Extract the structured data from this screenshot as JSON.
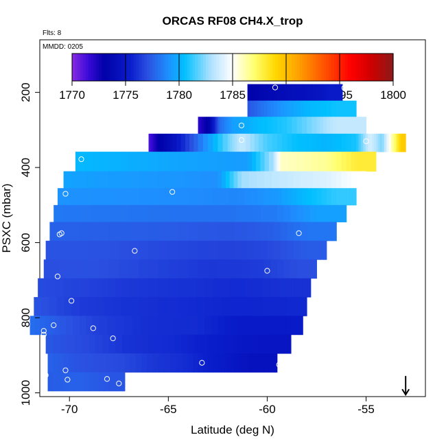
{
  "chart_data": {
    "type": "heatmap",
    "title": "ORCAS RF08 CH4.X_trop",
    "flights_label": "Flts: 8",
    "date_label": "MMDD: 0205",
    "xlabel": "Latitude (deg N)",
    "ylabel": "PSXC (mbar)",
    "xlim": [
      -71.5,
      -52
    ],
    "ylim": [
      1010,
      60
    ],
    "x_ticks": [
      -70,
      -65,
      -60,
      -55
    ],
    "x_tick_labels": [
      "-70",
      "-65",
      "-60",
      "-55"
    ],
    "y_ticks": [
      200,
      400,
      600,
      800,
      1000
    ],
    "y_tick_labels": [
      "200",
      "400",
      "600",
      "800",
      "1000"
    ],
    "colorbar": {
      "min": 1770,
      "max": 1800,
      "ticks": [
        1770,
        1775,
        1780,
        1785,
        1790,
        1795,
        1800
      ],
      "tick_labels": [
        "1770",
        "1775",
        "1780",
        "1785",
        "1790",
        "1795",
        "1800"
      ],
      "stops": [
        {
          "v": 1770,
          "c": "#8a2be2"
        },
        {
          "v": 1771.5,
          "c": "#3a0ad8"
        },
        {
          "v": 1773,
          "c": "#0000a8"
        },
        {
          "v": 1775.5,
          "c": "#0a1ecc"
        },
        {
          "v": 1777,
          "c": "#2a4ee0"
        },
        {
          "v": 1779,
          "c": "#1e90ff"
        },
        {
          "v": 1780.5,
          "c": "#00bfff"
        },
        {
          "v": 1783,
          "c": "#b0e2ff"
        },
        {
          "v": 1785,
          "c": "#ffffff"
        },
        {
          "v": 1787,
          "c": "#ffff70"
        },
        {
          "v": 1789,
          "c": "#ffd700"
        },
        {
          "v": 1791,
          "c": "#ffa500"
        },
        {
          "v": 1794,
          "c": "#ff4500"
        },
        {
          "v": 1796,
          "c": "#ff0000"
        },
        {
          "v": 1798,
          "c": "#cd0000"
        },
        {
          "v": 1800,
          "c": "#8b1a1a"
        }
      ]
    },
    "layers": [
      {
        "p": [
          178,
          222
        ],
        "x0": -61,
        "x1": -56.2,
        "segments": [
          [
            -61,
            1773.2
          ],
          [
            -59.8,
            1773.8
          ],
          [
            -58.8,
            1774.2
          ],
          [
            -57.5,
            1774.6
          ],
          [
            -56.8,
            1775.2
          ]
        ]
      },
      {
        "p": [
          222,
          265
        ],
        "x0": -61,
        "x1": -55.5,
        "segments": [
          [
            -61,
            1777.2
          ],
          [
            -60,
            1778.4
          ],
          [
            -59,
            1779.4
          ],
          [
            -58,
            1780.2
          ],
          [
            -56.5,
            1780.7
          ]
        ]
      },
      {
        "p": [
          265,
          310
        ],
        "x0": -63.5,
        "x1": -55,
        "segments": [
          [
            -63.5,
            1771.8
          ],
          [
            -62.9,
            1773.5
          ],
          [
            -62.4,
            1778
          ],
          [
            -61.7,
            1779.5
          ],
          [
            -60.5,
            1780.3
          ],
          [
            -59,
            1781
          ],
          [
            -57.5,
            1782.5
          ],
          [
            -56.5,
            1783.5
          ]
        ]
      },
      {
        "p": [
          310,
          358
        ],
        "x0": -66,
        "x1": -53,
        "segments": [
          [
            -66,
            1771
          ],
          [
            -65.5,
            1773
          ],
          [
            -64.8,
            1774.3
          ],
          [
            -63.5,
            1778
          ],
          [
            -62,
            1782
          ],
          [
            -61.3,
            1783.5
          ],
          [
            -60,
            1781.5
          ],
          [
            -58.5,
            1780.5
          ],
          [
            -57,
            1780.2
          ],
          [
            -55.5,
            1780.8
          ],
          [
            -54.8,
            1784
          ],
          [
            -54.2,
            1782.2
          ],
          [
            -53.5,
            1787.5
          ],
          [
            -53.2,
            1789.5
          ]
        ]
      },
      {
        "p": [
          358,
          410
        ],
        "x0": -69.7,
        "x1": -54.5,
        "segments": [
          [
            -69.7,
            1780.3
          ],
          [
            -67,
            1780
          ],
          [
            -64,
            1779.6
          ],
          [
            -61,
            1779.4
          ],
          [
            -59.7,
            1783
          ],
          [
            -59.3,
            1785.8
          ],
          [
            -57,
            1786.5
          ],
          [
            -55.5,
            1788
          ]
        ]
      },
      {
        "p": [
          410,
          455
        ],
        "x0": -70.3,
        "x1": -55,
        "segments": [
          [
            -70.3,
            1779.6
          ],
          [
            -68,
            1779.4
          ],
          [
            -65,
            1779.2
          ],
          [
            -62.5,
            1779
          ],
          [
            -61.3,
            1782.8
          ],
          [
            -59,
            1783.6
          ],
          [
            -57,
            1784.1
          ],
          [
            -55.5,
            1785
          ]
        ]
      },
      {
        "p": [
          455,
          500
        ],
        "x0": -70.6,
        "x1": -55.5,
        "segments": [
          [
            -70.6,
            1779.1
          ],
          [
            -67,
            1779
          ],
          [
            -64,
            1778.9
          ],
          [
            -61.5,
            1778.7
          ],
          [
            -59.5,
            1779.3
          ],
          [
            -58,
            1780.4
          ],
          [
            -56.5,
            1781.2
          ]
        ]
      },
      {
        "p": [
          500,
          545
        ],
        "x0": -70.8,
        "x1": -56,
        "segments": [
          [
            -70.8,
            1778.3
          ],
          [
            -68,
            1778.2
          ],
          [
            -65,
            1778.1
          ],
          [
            -62,
            1778.1
          ],
          [
            -59.5,
            1778.4
          ],
          [
            -57.5,
            1779.5
          ]
        ]
      },
      {
        "p": [
          545,
          595
        ],
        "x0": -71,
        "x1": -56.5,
        "segments": [
          [
            -71,
            1777.6
          ],
          [
            -68,
            1777.5
          ],
          [
            -65,
            1777.4
          ],
          [
            -62,
            1777.2
          ],
          [
            -60,
            1777.4
          ],
          [
            -58,
            1778.2
          ]
        ]
      },
      {
        "p": [
          595,
          645
        ],
        "x0": -71.2,
        "x1": -57,
        "segments": [
          [
            -71.2,
            1777.2
          ],
          [
            -68,
            1777.1
          ],
          [
            -65,
            1776.8
          ],
          [
            -62,
            1776.6
          ],
          [
            -60,
            1776.8
          ],
          [
            -58,
            1777.4
          ]
        ]
      },
      {
        "p": [
          645,
          695
        ],
        "x0": -71.3,
        "x1": -57.5,
        "segments": [
          [
            -71.3,
            1777
          ],
          [
            -69,
            1777.1
          ],
          [
            -66,
            1776.7
          ],
          [
            -63,
            1776.3
          ],
          [
            -60.5,
            1776.4
          ],
          [
            -58.5,
            1777
          ]
        ]
      },
      {
        "p": [
          695,
          745
        ],
        "x0": -71.6,
        "x1": -57.8,
        "segments": [
          [
            -71.6,
            1776.9
          ],
          [
            -69,
            1776.6
          ],
          [
            -67,
            1776.3
          ],
          [
            -64,
            1776.1
          ],
          [
            -61.5,
            1775.9
          ],
          [
            -59,
            1776.1
          ]
        ]
      },
      {
        "p": [
          745,
          795
        ],
        "x0": -71.8,
        "x1": -58,
        "segments": [
          [
            -71.8,
            1777.2
          ],
          [
            -69.5,
            1776.4
          ],
          [
            -67,
            1776.1
          ],
          [
            -64,
            1775.9
          ],
          [
            -61.5,
            1775.7
          ],
          [
            -59,
            1775.8
          ]
        ]
      },
      {
        "p": [
          795,
          845
        ],
        "x0": -72,
        "x1": -58.2,
        "segments": [
          [
            -72,
            1778
          ],
          [
            -70.5,
            1777.3
          ],
          [
            -68.5,
            1776.5
          ],
          [
            -66,
            1776
          ],
          [
            -63.5,
            1775.9
          ],
          [
            -61.5,
            1775.3
          ],
          [
            -59.5,
            1775.2
          ]
        ]
      },
      {
        "p": [
          845,
          895
        ],
        "x0": -71.2,
        "x1": -58.8,
        "segments": [
          [
            -71.2,
            1777.3
          ],
          [
            -69,
            1776.8
          ],
          [
            -67,
            1776.1
          ],
          [
            -65,
            1775.9
          ],
          [
            -63,
            1775.5
          ],
          [
            -61.5,
            1775
          ],
          [
            -60,
            1774.8
          ]
        ]
      },
      {
        "p": [
          895,
          945
        ],
        "x0": -71.1,
        "x1": -59.5,
        "segments": [
          [
            -71.1,
            1777.6
          ],
          [
            -69.5,
            1777.1
          ],
          [
            -67.5,
            1776.9
          ],
          [
            -65.8,
            1776.3
          ],
          [
            -64,
            1775.9
          ],
          [
            -62.5,
            1775.3
          ],
          [
            -61.5,
            1774.8
          ],
          [
            -60.8,
            1774.5
          ]
        ]
      },
      {
        "p": [
          945,
          995
        ],
        "x0": -71.1,
        "x1": -67.2,
        "segments": [
          [
            -71.1,
            1777.4
          ],
          [
            -69.5,
            1777.6
          ],
          [
            -68,
            1777.2
          ]
        ]
      }
    ],
    "flight_points": [
      {
        "x": -59.6,
        "p": 187
      },
      {
        "x": -56.1,
        "p": 188
      },
      {
        "x": -61.3,
        "p": 288
      },
      {
        "x": -61.3,
        "p": 327
      },
      {
        "x": -55,
        "p": 330
      },
      {
        "x": -69.4,
        "p": 378
      },
      {
        "x": -64.8,
        "p": 465
      },
      {
        "x": -70.2,
        "p": 470
      },
      {
        "x": -70.4,
        "p": 575
      },
      {
        "x": -70.5,
        "p": 578
      },
      {
        "x": -58.4,
        "p": 575
      },
      {
        "x": -66.7,
        "p": 622
      },
      {
        "x": -60,
        "p": 675
      },
      {
        "x": -70.6,
        "p": 690
      },
      {
        "x": -69.9,
        "p": 755
      },
      {
        "x": -57.8,
        "p": 775
      },
      {
        "x": -70.8,
        "p": 820
      },
      {
        "x": -71.3,
        "p": 835
      },
      {
        "x": -68.8,
        "p": 828
      },
      {
        "x": -71.3,
        "p": 845
      },
      {
        "x": -67.8,
        "p": 855
      },
      {
        "x": -63.3,
        "p": 920
      },
      {
        "x": -59.4,
        "p": 925
      },
      {
        "x": -70.2,
        "p": 940
      },
      {
        "x": -71.2,
        "p": 953
      },
      {
        "x": -70.1,
        "p": 965
      },
      {
        "x": -68.1,
        "p": 963
      },
      {
        "x": -67.5,
        "p": 975
      }
    ],
    "arrow": {
      "x": -53,
      "p_tip": 1005,
      "p_tail": 955
    }
  }
}
